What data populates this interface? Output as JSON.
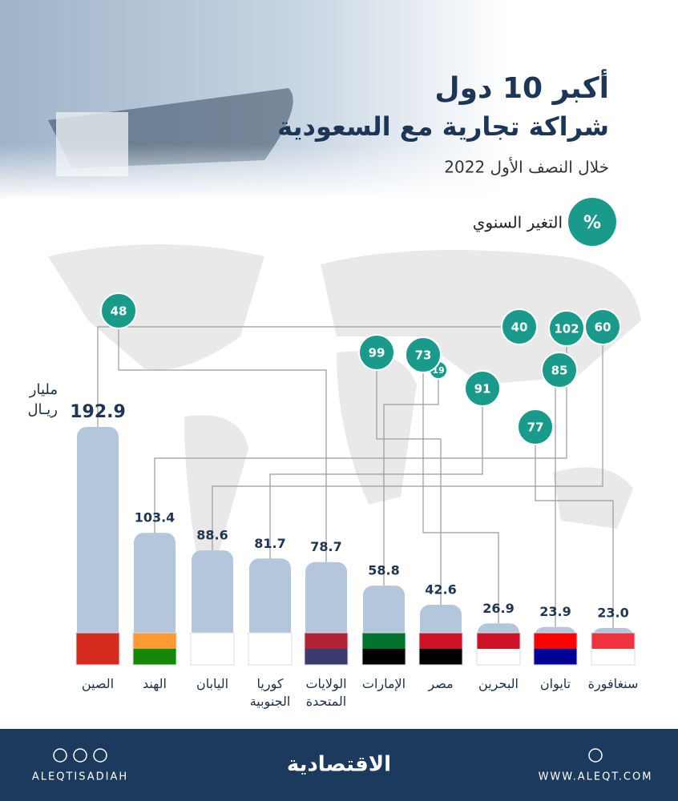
{
  "header": {
    "title_line1": "أكبر 10 دول",
    "title_line2": "شراكة تجارية مع السعودية",
    "subtitle": "خلال النصف الأول 2022"
  },
  "chart_data": {
    "type": "bar",
    "unit_label_line1": "مليار",
    "unit_label_line2": "ريـال",
    "change_legend": {
      "symbol": "%",
      "label": "التغير السنوي"
    },
    "categories": [
      "الصين",
      "الهند",
      "اليابان",
      "كوريا الجنوبية",
      "الولايات المتحدة",
      "الإمارات",
      "مصر",
      "البحرين",
      "تايوان",
      "سنغافورة"
    ],
    "values": [
      192.9,
      103.4,
      88.6,
      81.7,
      78.7,
      58.8,
      42.6,
      26.9,
      23.9,
      23.0
    ],
    "value_labels": [
      "192.9",
      "103.4",
      "88.6",
      "81.7",
      "78.7",
      "58.8",
      "42.6",
      "26.9",
      "23.9",
      "23.0"
    ],
    "annual_change": [
      40,
      102,
      60,
      91,
      48,
      19,
      99,
      73,
      85,
      77
    ],
    "color": "#b3c6dc",
    "change_color": "#1a9a8a"
  },
  "footer": {
    "social_handle": "ALEQTISADIAH",
    "logo": "الاقتصادية",
    "website": "WWW.ALEQT.COM"
  }
}
